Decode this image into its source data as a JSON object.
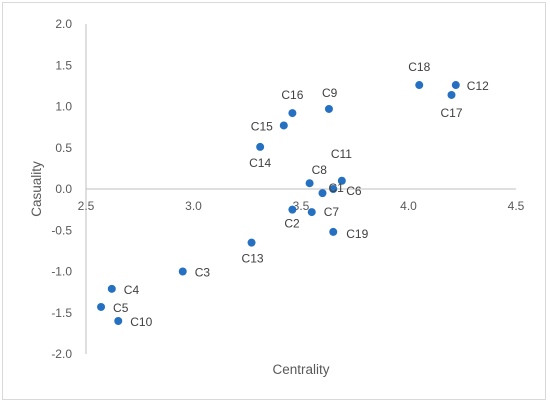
{
  "chart_data": {
    "type": "scatter",
    "xlabel": "Centrality",
    "ylabel": "Casuality",
    "xlim": [
      2.5,
      4.5
    ],
    "ylim": [
      -2.0,
      2.0
    ],
    "x_ticks": [
      "2.5",
      "3.0",
      "3.5",
      "4.0",
      "4.5"
    ],
    "y_ticks": [
      "2.0",
      "1.5",
      "1.0",
      "0.5",
      "0.0",
      "-0.5",
      "-1.0",
      "-1.5",
      "-2.0"
    ],
    "grid": false,
    "marker_color": "#2670c2",
    "points": [
      {
        "label": "C1",
        "x": 3.6,
        "y": -0.05
      },
      {
        "label": "C2",
        "x": 3.46,
        "y": -0.25
      },
      {
        "label": "C3",
        "x": 2.95,
        "y": -1.0
      },
      {
        "label": "C4",
        "x": 2.62,
        "y": -1.21
      },
      {
        "label": "C5",
        "x": 2.57,
        "y": -1.43
      },
      {
        "label": "C6",
        "x": 3.65,
        "y": 0.0
      },
      {
        "label": "C7",
        "x": 3.55,
        "y": -0.28
      },
      {
        "label": "C8",
        "x": 3.54,
        "y": 0.07
      },
      {
        "label": "C9",
        "x": 3.63,
        "y": 0.97
      },
      {
        "label": "C10",
        "x": 2.65,
        "y": -1.6
      },
      {
        "label": "C11",
        "x": 3.69,
        "y": 0.1
      },
      {
        "label": "C12",
        "x": 4.22,
        "y": 1.26
      },
      {
        "label": "C13",
        "x": 3.27,
        "y": -0.65
      },
      {
        "label": "C14",
        "x": 3.31,
        "y": 0.51
      },
      {
        "label": "C15",
        "x": 3.42,
        "y": 0.77
      },
      {
        "label": "C16",
        "x": 3.46,
        "y": 0.92
      },
      {
        "label": "C17",
        "x": 4.2,
        "y": 1.14
      },
      {
        "label": "C18",
        "x": 4.05,
        "y": 1.26
      },
      {
        "label": "C19",
        "x": 3.65,
        "y": -0.52
      }
    ]
  }
}
